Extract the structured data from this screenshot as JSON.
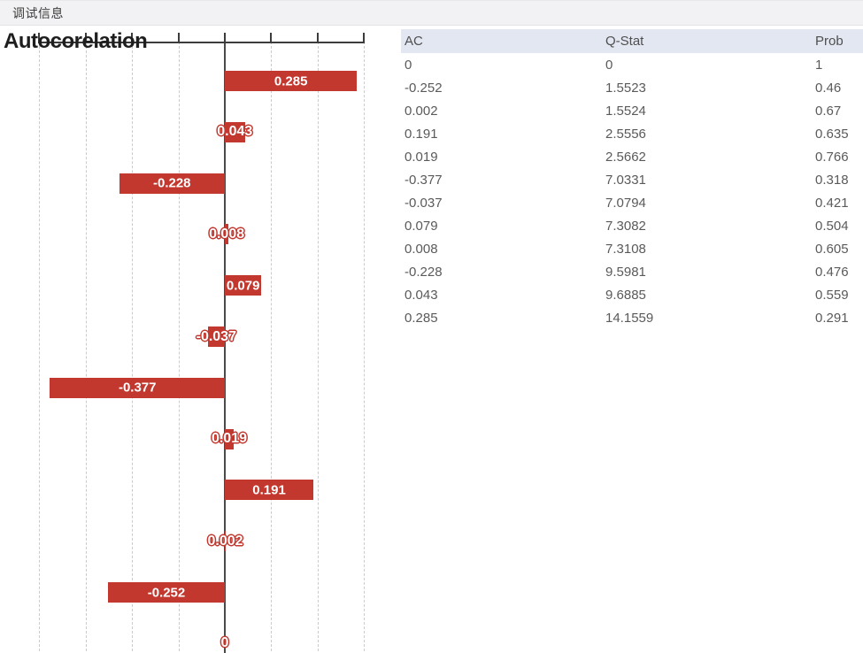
{
  "titlebar": {
    "label": "调试信息"
  },
  "chart_data": {
    "type": "bar",
    "orientation": "horizontal",
    "title": "Autocorelation",
    "bar_color": "#C2382F",
    "xlabel": "",
    "ylabel": "",
    "axis": {
      "tick_values": [
        -0.4,
        -0.3,
        -0.2,
        -0.1,
        0,
        0.1,
        0.2,
        0.3
      ],
      "xlim": [
        -0.42,
        0.38
      ],
      "grid": "dashed-vertical"
    },
    "bars_top_to_bottom": [
      {
        "value": 0.285,
        "label": "0.285",
        "label_style": "inside"
      },
      {
        "value": 0.043,
        "label": "0.043",
        "label_style": "outline"
      },
      {
        "value": -0.228,
        "label": "-0.228",
        "label_style": "inside"
      },
      {
        "value": 0.008,
        "label": "0.008",
        "label_style": "outline"
      },
      {
        "value": 0.079,
        "label": "0.079",
        "label_style": "inside"
      },
      {
        "value": -0.037,
        "label": "-0.037",
        "label_style": "outline"
      },
      {
        "value": -0.377,
        "label": "-0.377",
        "label_style": "inside"
      },
      {
        "value": 0.019,
        "label": "0.019",
        "label_style": "outline"
      },
      {
        "value": 0.191,
        "label": "0.191",
        "label_style": "inside"
      },
      {
        "value": 0.002,
        "label": "0.002",
        "label_style": "outline"
      },
      {
        "value": -0.252,
        "label": "-0.252",
        "label_style": "inside"
      },
      {
        "value": 0,
        "label": "0",
        "label_style": "outline"
      }
    ]
  },
  "table": {
    "columns": [
      "AC",
      "Q-Stat",
      "Prob"
    ],
    "rows": [
      [
        "0",
        "0",
        "1"
      ],
      [
        "-0.252",
        "1.5523",
        "0.46"
      ],
      [
        "0.002",
        "1.5524",
        "0.67"
      ],
      [
        "0.191",
        "2.5556",
        "0.635"
      ],
      [
        "0.019",
        "2.5662",
        "0.766"
      ],
      [
        "-0.377",
        "7.0331",
        "0.318"
      ],
      [
        "-0.037",
        "7.0794",
        "0.421"
      ],
      [
        "0.079",
        "7.3082",
        "0.504"
      ],
      [
        "0.008",
        "7.3108",
        "0.605"
      ],
      [
        "-0.228",
        "9.5981",
        "0.476"
      ],
      [
        "0.043",
        "9.6885",
        "0.559"
      ],
      [
        "0.285",
        "14.1559",
        "0.291"
      ]
    ]
  }
}
